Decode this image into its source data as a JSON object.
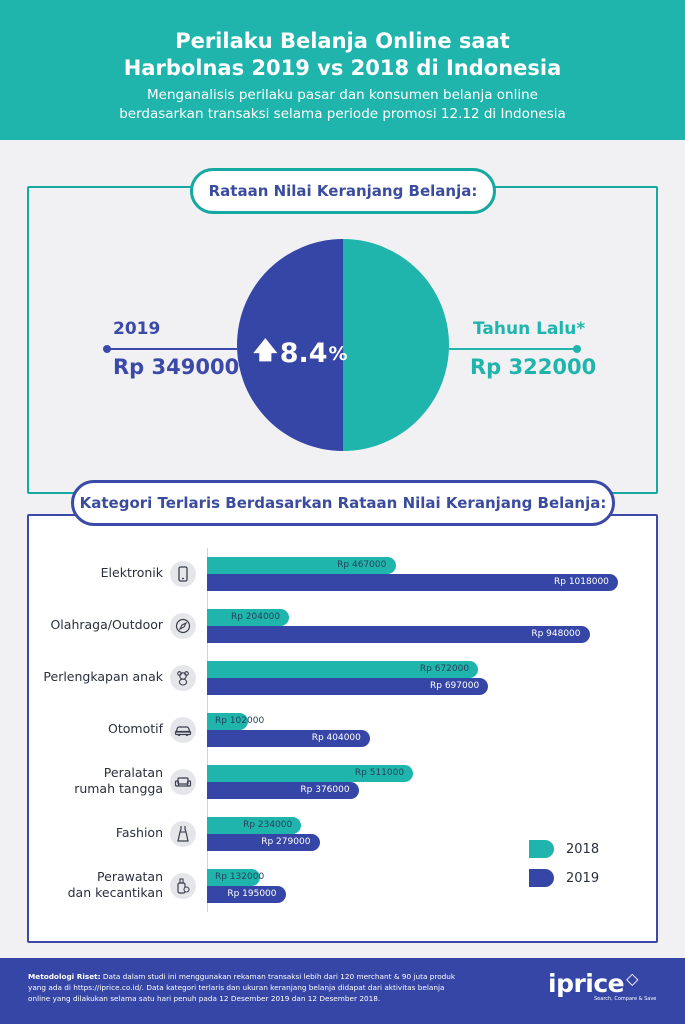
{
  "header": {
    "title_line1": "Perilaku Belanja Online saat",
    "title_line2": "Harbolnas 2019 vs 2018 di Indonesia",
    "subtitle_line1": "Menganalisis perilaku pasar dan konsumen belanja online",
    "subtitle_line2": "berdasarkan transaksi selama periode promosi 12.12 di Indonesia"
  },
  "basket": {
    "heading": "Rataan Nilai Keranjang Belanja:",
    "left_year": "2019",
    "left_value": "Rp 349000",
    "right_year": "Tahun Lalu*",
    "right_value": "Rp 322000",
    "change": "8.4",
    "change_unit": "%",
    "colors": {
      "current": "#3646a6",
      "previous": "#1fb5ad"
    }
  },
  "categories_heading": "Kategori Terlaris Berdasarkan Rataan Nilai Keranjang Belanja:",
  "chart_data": {
    "type": "bar",
    "orientation": "horizontal",
    "categories": [
      "Elektronik",
      "Olahraga/Outdoor",
      "Perlengkapan anak",
      "Otomotif",
      "Peralatan rumah tangga",
      "Fashion",
      "Perawatan dan kecantikan"
    ],
    "category_lines": [
      [
        "Elektronik"
      ],
      [
        "Olahraga/Outdoor"
      ],
      [
        "Perlengkapan anak"
      ],
      [
        "Otomotif"
      ],
      [
        "Peralatan",
        "rumah tangga"
      ],
      [
        "Fashion"
      ],
      [
        "Perawatan",
        "dan kecantikan"
      ]
    ],
    "icons": [
      "phone-icon",
      "compass-icon",
      "teddy-bear-icon",
      "car-icon",
      "sofa-icon",
      "dress-icon",
      "lotion-icon"
    ],
    "series": [
      {
        "name": "2018",
        "color": "#1fb5ad",
        "values": [
          467000,
          204000,
          672000,
          102000,
          511000,
          234000,
          132000
        ]
      },
      {
        "name": "2019",
        "color": "#3646a6",
        "values": [
          1018000,
          948000,
          697000,
          404000,
          376000,
          279000,
          195000
        ]
      }
    ],
    "value_prefix": "Rp ",
    "xlim": [
      0,
      1100000
    ],
    "legend_position": "right"
  },
  "footer": {
    "method_label": "Metodologi Riset:",
    "method_text": " Data dalam studi ini menggunakan rekaman transaksi lebih dari 120 merchant & 90 juta produk yang ada di https://iprice.co.id/. Data kategori terlaris dan ukuran keranjang belanja didapat dari aktivitas belanja online yang dilakukan selama satu hari penuh pada 12 Desember 2019 dan 12 Desember 2018.",
    "logo_text": "iprice",
    "logo_tagline": "Search, Compare & Save"
  }
}
